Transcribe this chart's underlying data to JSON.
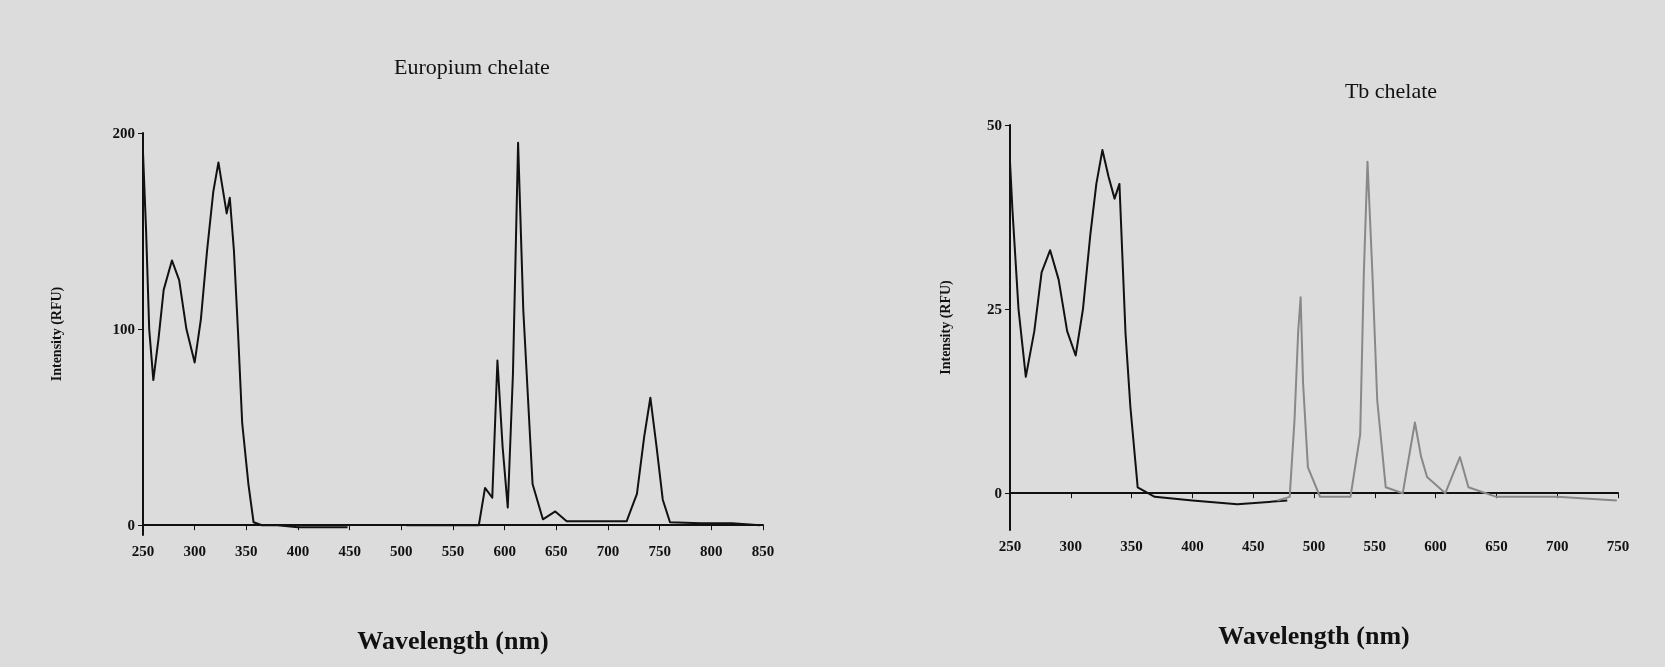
{
  "chart_data": [
    {
      "type": "line",
      "title": "Europium chelate",
      "xlabel": "Wavelength (nm)",
      "ylabel": "Intensity (RFU)",
      "xlim": [
        250,
        850
      ],
      "xticks": [
        250,
        300,
        350,
        400,
        450,
        500,
        550,
        600,
        650,
        700,
        750,
        800,
        850
      ],
      "ylim": [
        -5,
        200
      ],
      "yticks": [
        0,
        100,
        200
      ],
      "series": [
        {
          "color": "#111111",
          "x": [
            250,
            253,
            256,
            260,
            265,
            270,
            278,
            285,
            292,
            300,
            306,
            312,
            318,
            323,
            327,
            331,
            334,
            338,
            342,
            346,
            352,
            357,
            365,
            380,
            400,
            420,
            448,
            475,
            505,
            540,
            575,
            581,
            588,
            593,
            598,
            603,
            608,
            613,
            618,
            627,
            637,
            649,
            660,
            690,
            718,
            728,
            735,
            741,
            747,
            753,
            760,
            790,
            820,
            847
          ],
          "values": [
            190,
            150,
            100,
            74,
            95,
            120,
            135,
            125,
            100,
            83,
            105,
            140,
            170,
            185,
            172,
            159,
            167,
            140,
            98,
            52,
            21,
            1.5,
            0,
            0,
            -1,
            -1,
            -1,
            null,
            0,
            0,
            0,
            19,
            14,
            84,
            40,
            9,
            77,
            195,
            110,
            21,
            3,
            7,
            2,
            2,
            2,
            16,
            45,
            65,
            40,
            13,
            1.5,
            1,
            1,
            0
          ]
        }
      ]
    },
    {
      "type": "line",
      "title": "Tb chelate",
      "xlabel": "Wavelength (nm)",
      "ylabel": "Intensity (RFU)",
      "xlim": [
        250,
        750
      ],
      "xticks": [
        250,
        300,
        350,
        400,
        450,
        500,
        550,
        600,
        650,
        700,
        750
      ],
      "ylim": [
        -5,
        50
      ],
      "yticks": [
        0,
        25,
        50
      ],
      "series": [
        {
          "color": "#111111",
          "x": [
            250,
            252,
            257,
            263,
            270,
            276,
            283,
            290,
            297,
            304,
            310,
            316,
            321,
            326,
            331,
            336,
            340,
            345,
            349,
            355,
            369,
            400,
            437,
            478
          ],
          "values": [
            45,
            38.5,
            25,
            15.8,
            22,
            30,
            33,
            29,
            22,
            18.7,
            25,
            35,
            42,
            46.6,
            43,
            40,
            42,
            21.7,
            11.7,
            0.8,
            -0.5,
            -1,
            -1.5,
            -1
          ]
        },
        {
          "color": "#888888",
          "x": [
            470,
            480,
            484,
            487,
            489,
            491,
            495,
            505,
            530,
            538,
            541,
            544,
            548,
            552,
            559,
            573,
            579,
            583,
            588,
            593,
            608,
            620,
            627,
            650,
            700,
            749
          ],
          "values": [
            -1,
            -0.5,
            10,
            22,
            26.6,
            15,
            3.5,
            -0.5,
            -0.5,
            8,
            30,
            45,
            30,
            12.6,
            0.8,
            0,
            5.8,
            9.6,
            5,
            2.2,
            0,
            4.9,
            0.8,
            -0.5,
            -0.5,
            -1
          ]
        }
      ]
    }
  ]
}
